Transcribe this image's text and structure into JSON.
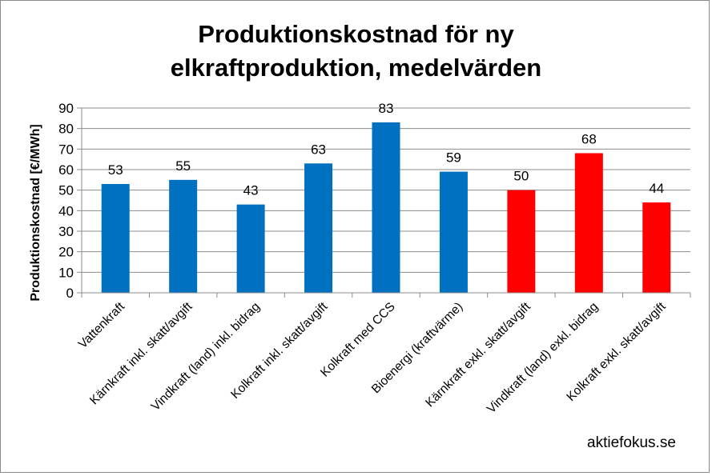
{
  "chart_data": {
    "type": "bar",
    "title_lines": [
      "Produktionskostnad för ny",
      "elkraftproduktion, medelvärden"
    ],
    "ylabel": "Produktionskostnad [€/MWh]",
    "xlabel": "",
    "ylim": [
      0,
      90
    ],
    "yticks": [
      0,
      10,
      20,
      30,
      40,
      50,
      60,
      70,
      80,
      90
    ],
    "grid": true,
    "legend": "none",
    "categories": [
      "Vattenkraft",
      "Kärnkraft inkl. skatt/avgift",
      "Vindkraft (land) inkl. bidrag",
      "Kolkraft inkl. skatt/avgift",
      "Kolkraft med CCS",
      "Bioenergi (kraftvärme)",
      "Kärnkraft exkl. skatt/avgift",
      "Vindkraft (land) exkl. bidrag",
      "Kolkraft exkl. skatt/avgift"
    ],
    "values": [
      53,
      55,
      43,
      63,
      83,
      59,
      50,
      68,
      44
    ],
    "bar_colors": [
      "#0070c0",
      "#0070c0",
      "#0070c0",
      "#0070c0",
      "#0070c0",
      "#0070c0",
      "#ff0000",
      "#ff0000",
      "#ff0000"
    ]
  },
  "watermark": "aktiefokus.se"
}
